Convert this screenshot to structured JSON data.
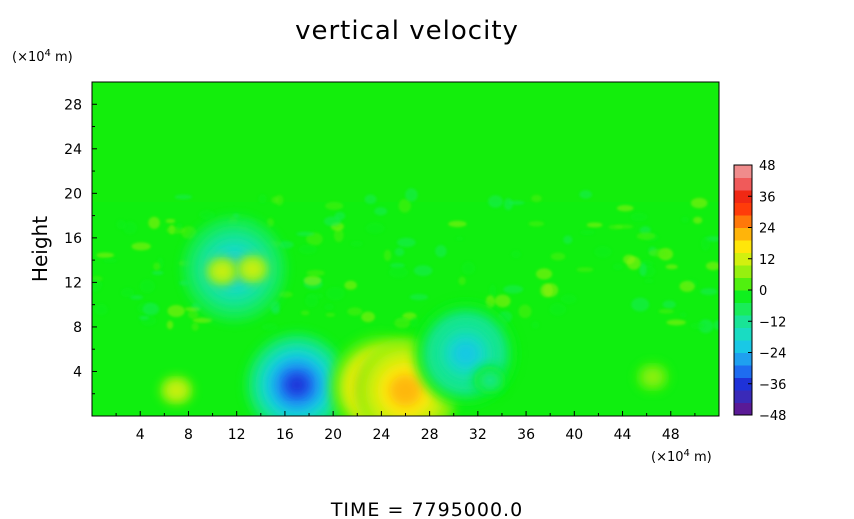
{
  "chart_data": {
    "type": "heatmap",
    "title": "vertical velocity",
    "ylabel": "Height",
    "xunit_prefix": "(×10",
    "xunit_exp": "4",
    "xunit_suffix": " m)",
    "yunit_prefix": "(×10",
    "yunit_exp": "4",
    "yunit_suffix": " m)",
    "xlim": [
      0,
      52
    ],
    "ylim": [
      0,
      30
    ],
    "x_ticks": [
      4,
      8,
      12,
      16,
      20,
      24,
      28,
      32,
      36,
      40,
      44,
      48
    ],
    "y_ticks": [
      4,
      8,
      12,
      16,
      20,
      24,
      28
    ],
    "x_tick_labels": [
      "4",
      "8",
      "12",
      "16",
      "20",
      "24",
      "28",
      "32",
      "36",
      "40",
      "44",
      "48"
    ],
    "y_tick_labels": [
      "4",
      "8",
      "12",
      "16",
      "20",
      "24",
      "28"
    ],
    "colorbar": {
      "range": [
        -48,
        48
      ],
      "ticks": [
        48,
        36,
        24,
        12,
        0,
        -12,
        -24,
        -36,
        -48
      ],
      "tick_labels": [
        "48",
        "36",
        "24",
        "12",
        "0",
        "−12",
        "−24",
        "−36",
        "−48"
      ],
      "colors": [
        "#5a1a96",
        "#3a2ab8",
        "#1e32d8",
        "#1e6cf0",
        "#1fa0f0",
        "#19c8e6",
        "#19dcc2",
        "#19e496",
        "#19ec5a",
        "#0ff01e",
        "#50f00f",
        "#96f00f",
        "#d2f00f",
        "#ffe60a",
        "#ffb40a",
        "#ff780a",
        "#ff3c0a",
        "#f02814",
        "#f05a5a",
        "#f08c8c"
      ]
    },
    "features": [
      {
        "x": 7.0,
        "z": 2.3,
        "value": 12
      },
      {
        "x": 17.0,
        "z": 2.8,
        "value": -36
      },
      {
        "x": 24.0,
        "z": 2.6,
        "value": 24
      },
      {
        "x": 26.0,
        "z": 2.3,
        "value": 20
      },
      {
        "x": 31.0,
        "z": 5.6,
        "value": -24
      },
      {
        "x": 11.8,
        "z": 13.2,
        "value": -22
      },
      {
        "x": 10.8,
        "z": 13.0,
        "value": 12
      },
      {
        "x": 13.3,
        "z": 13.2,
        "value": 10
      },
      {
        "x": 46.5,
        "z": 3.5,
        "value": 9
      },
      {
        "x": 33.0,
        "z": 3.2,
        "value": -14
      }
    ]
  },
  "footer": {
    "time_label": "TIME",
    "equals": "=",
    "time_value": "7795000.0"
  }
}
